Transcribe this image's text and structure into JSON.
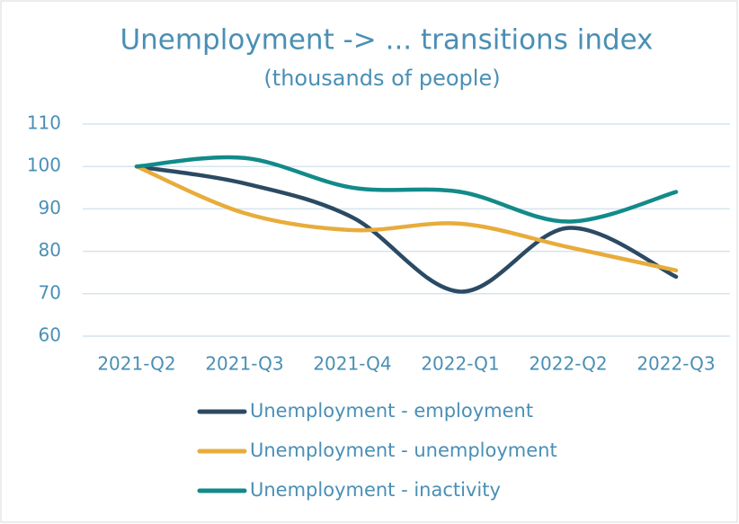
{
  "chart_data": {
    "type": "line",
    "title": "Unemployment -> ... transitions index",
    "subtitle": "(thousands of people)",
    "categories": [
      "2021-Q2",
      "2021-Q3",
      "2021-Q4",
      "2022-Q1",
      "2022-Q2",
      "2022-Q3"
    ],
    "series": [
      {
        "name": "Unemployment - employment",
        "color": "#2b4a63",
        "values": [
          100,
          96,
          88,
          70.5,
          85.5,
          74
        ]
      },
      {
        "name": "Unemployment - unemployment",
        "color": "#e8ac3c",
        "values": [
          100,
          89,
          85,
          86.5,
          81,
          75.5
        ]
      },
      {
        "name": "Unemployment - inactivity",
        "color": "#138a8a",
        "values": [
          100,
          102,
          95,
          94,
          87,
          94
        ]
      }
    ],
    "ylim": [
      60,
      110
    ],
    "yticks": [
      60,
      70,
      80,
      90,
      100,
      110
    ],
    "grid": true,
    "legend": "bottom"
  }
}
